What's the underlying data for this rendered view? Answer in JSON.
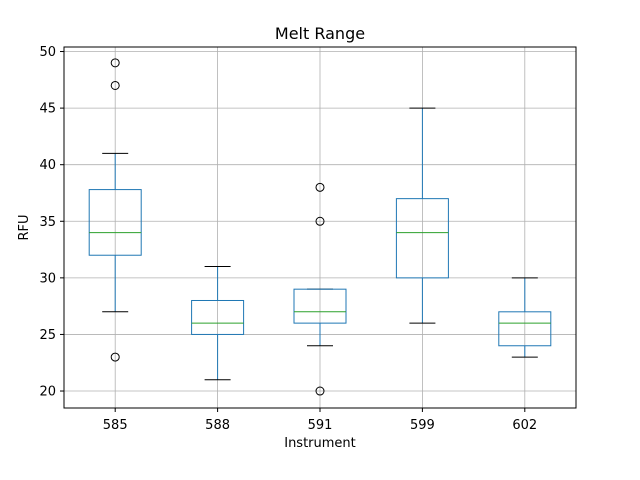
{
  "chart_data": {
    "type": "boxplot",
    "title": "Melt Range",
    "xlabel": "Instrument",
    "ylabel": "RFU",
    "ylim": [
      18.5,
      50.4
    ],
    "yticks": [
      20,
      25,
      30,
      35,
      40,
      45,
      50
    ],
    "grid": true,
    "colors": {
      "box": "#1f77b4",
      "median": "#2ca02c",
      "whisker": "#1f77b4",
      "cap": "#000000",
      "flier": "#000000",
      "grid": "#b0b0b0"
    },
    "categories": [
      "585",
      "588",
      "591",
      "599",
      "602"
    ],
    "boxes": [
      {
        "label": "585",
        "q1": 32,
        "median": 34,
        "q3": 37.8,
        "whislo": 27,
        "whishi": 41,
        "fliers": [
          49,
          47,
          23
        ]
      },
      {
        "label": "588",
        "q1": 25,
        "median": 26,
        "q3": 28,
        "whislo": 21,
        "whishi": 31,
        "fliers": []
      },
      {
        "label": "591",
        "q1": 26,
        "median": 27,
        "q3": 29,
        "whislo": 24,
        "whishi": 29,
        "fliers": [
          38,
          35,
          20
        ]
      },
      {
        "label": "599",
        "q1": 30,
        "median": 34,
        "q3": 37,
        "whislo": 26,
        "whishi": 45,
        "fliers": []
      },
      {
        "label": "602",
        "q1": 24,
        "median": 26,
        "q3": 27,
        "whislo": 23,
        "whishi": 30,
        "fliers": []
      }
    ]
  }
}
